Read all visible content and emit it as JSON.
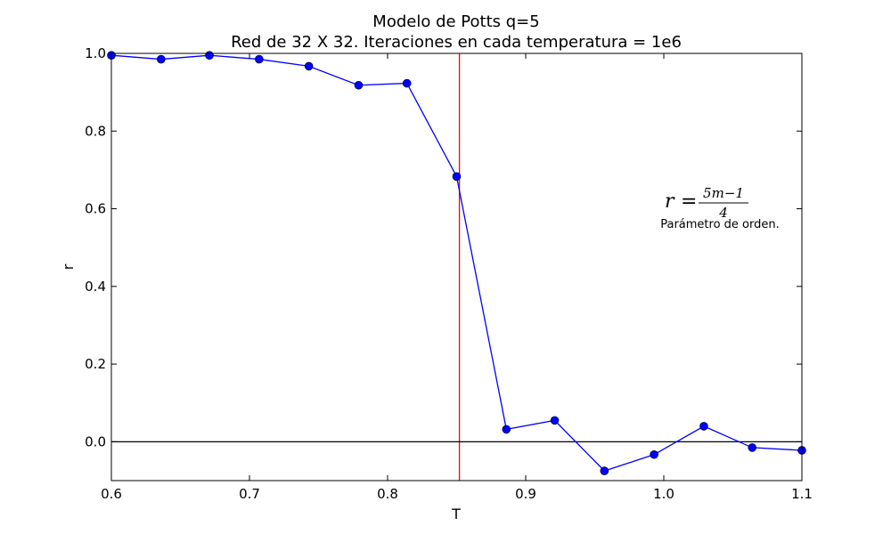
{
  "chart_data": {
    "type": "line",
    "title": "Modelo de Potts q=5",
    "subtitle": "Red de 32 X 32. Iteraciones en cada temperatura = 1e6",
    "xlabel": "T",
    "ylabel": "r",
    "xlim": [
      0.6,
      1.1
    ],
    "ylim": [
      -0.1,
      1.0
    ],
    "xticks": [
      "0.6",
      "0.7",
      "0.8",
      "0.9",
      "1.0",
      "1.1"
    ],
    "yticks": [
      "0.0",
      "0.2",
      "0.4",
      "0.6",
      "0.8",
      "1.0"
    ],
    "grid": false,
    "series": [
      {
        "color": "#0000ff",
        "marker": "circle",
        "x": [
          0.6,
          0.636,
          0.671,
          0.707,
          0.743,
          0.779,
          0.814,
          0.85,
          0.886,
          0.921,
          0.957,
          0.993,
          1.029,
          1.064,
          1.1
        ],
        "y": [
          0.995,
          0.985,
          0.995,
          0.985,
          0.967,
          0.918,
          0.923,
          0.683,
          0.032,
          0.055,
          -0.075,
          -0.033,
          0.04,
          -0.015,
          -0.022
        ]
      }
    ],
    "reference_lines": [
      {
        "orientation": "vertical",
        "value": 0.852,
        "color": "#ff0000"
      },
      {
        "orientation": "horizontal",
        "value": 0.0,
        "color": "#000000"
      }
    ],
    "annotation": {
      "formula_lhs": "r",
      "formula_eq": "=",
      "formula_num": "5m−1",
      "formula_den": "4",
      "text": "Parámetro de orden."
    }
  }
}
